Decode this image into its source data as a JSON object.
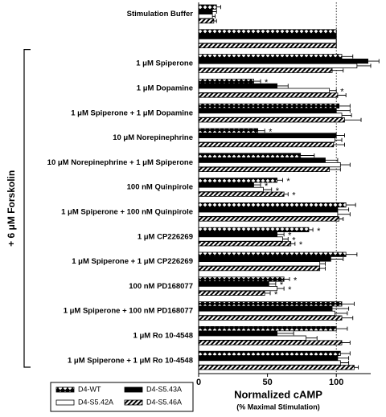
{
  "chart_data": {
    "type": "hbar",
    "categories": [
      "Stimulation Buffer",
      null,
      "1 μM Spiperone",
      "1 μM Dopamine",
      "1 μM Spiperone + 1 μM Dopamine",
      "10 μM Norepinephrine",
      "10 μM Norepinephrine + 1 μM Spiperone",
      "100 nM Quinpirole",
      "1 μM Spiperone + 100 nM Quinpirole",
      "1 μM CP226269",
      "1 μM Spiperone + 1 μM CP226269",
      "100 nM PD168077",
      "1 μM Spiperone + 100 nM PD168077",
      "1 μM Ro 10-4548",
      "1 μM Spiperone + 1 μM Ro 10-4548"
    ],
    "series": [
      {
        "name": "D4-WT",
        "color": "#000000",
        "fill": "crosshatch",
        "values": [
          13,
          100,
          104,
          40,
          102,
          43,
          74,
          57,
          107,
          80,
          107,
          62,
          104,
          100,
          103
        ],
        "errors": [
          3,
          0,
          8,
          5,
          8,
          5,
          10,
          4,
          7,
          3,
          8,
          4,
          9,
          8,
          7
        ],
        "marks": [
          null,
          null,
          null,
          "*",
          null,
          "*",
          null,
          "*",
          null,
          "*",
          null,
          "*",
          null,
          null,
          null
        ]
      },
      {
        "name": "D4-S5.43A",
        "color": "#000000",
        "fill": "solid",
        "values": [
          10,
          100,
          123,
          57,
          100,
          100,
          92,
          40,
          101,
          57,
          96,
          51,
          97,
          57,
          101
        ],
        "errors": [
          3,
          0,
          8,
          8,
          10,
          6,
          9,
          5,
          8,
          5,
          9,
          5,
          12,
          12,
          8
        ],
        "marks": [
          null,
          null,
          null,
          null,
          null,
          null,
          null,
          "*",
          null,
          "*",
          null,
          "*",
          null,
          null,
          null
        ]
      },
      {
        "name": "D4-S5.42A",
        "color": "#000000",
        "fill": "open",
        "values": [
          10,
          100,
          115,
          95,
          104,
          99,
          103,
          47,
          101,
          61,
          88,
          57,
          99,
          78,
          103
        ],
        "errors": [
          2,
          0,
          10,
          5,
          7,
          5,
          7,
          6,
          9,
          4,
          4,
          5,
          9,
          8,
          6
        ],
        "marks": [
          null,
          null,
          null,
          "*",
          null,
          null,
          null,
          "*",
          null,
          "*",
          null,
          "*",
          null,
          null,
          null
        ]
      },
      {
        "name": "D4-S5.46A",
        "color": "#000000",
        "fill": "hatch",
        "values": [
          11,
          100,
          97,
          101,
          106,
          98,
          95,
          62,
          102,
          67,
          88,
          48,
          104,
          104,
          113
        ],
        "errors": [
          2,
          0,
          8,
          6,
          12,
          8,
          8,
          3,
          3,
          3,
          4,
          4,
          8,
          6,
          3
        ],
        "marks": [
          null,
          null,
          null,
          null,
          null,
          null,
          null,
          "*",
          null,
          "*",
          null,
          "*",
          null,
          null,
          null
        ]
      }
    ],
    "xlim": [
      0,
      125
    ],
    "xticks": [
      0,
      50,
      100
    ],
    "reference_line": 100,
    "xlabel": "Normalized cAMP",
    "xlabel_sub": "(% Maximal Stimulation)",
    "bracket_label": "+ 6 μM Forskolin",
    "bracket_from": 2,
    "bracket_to": 14,
    "legend": "bottom-left"
  }
}
